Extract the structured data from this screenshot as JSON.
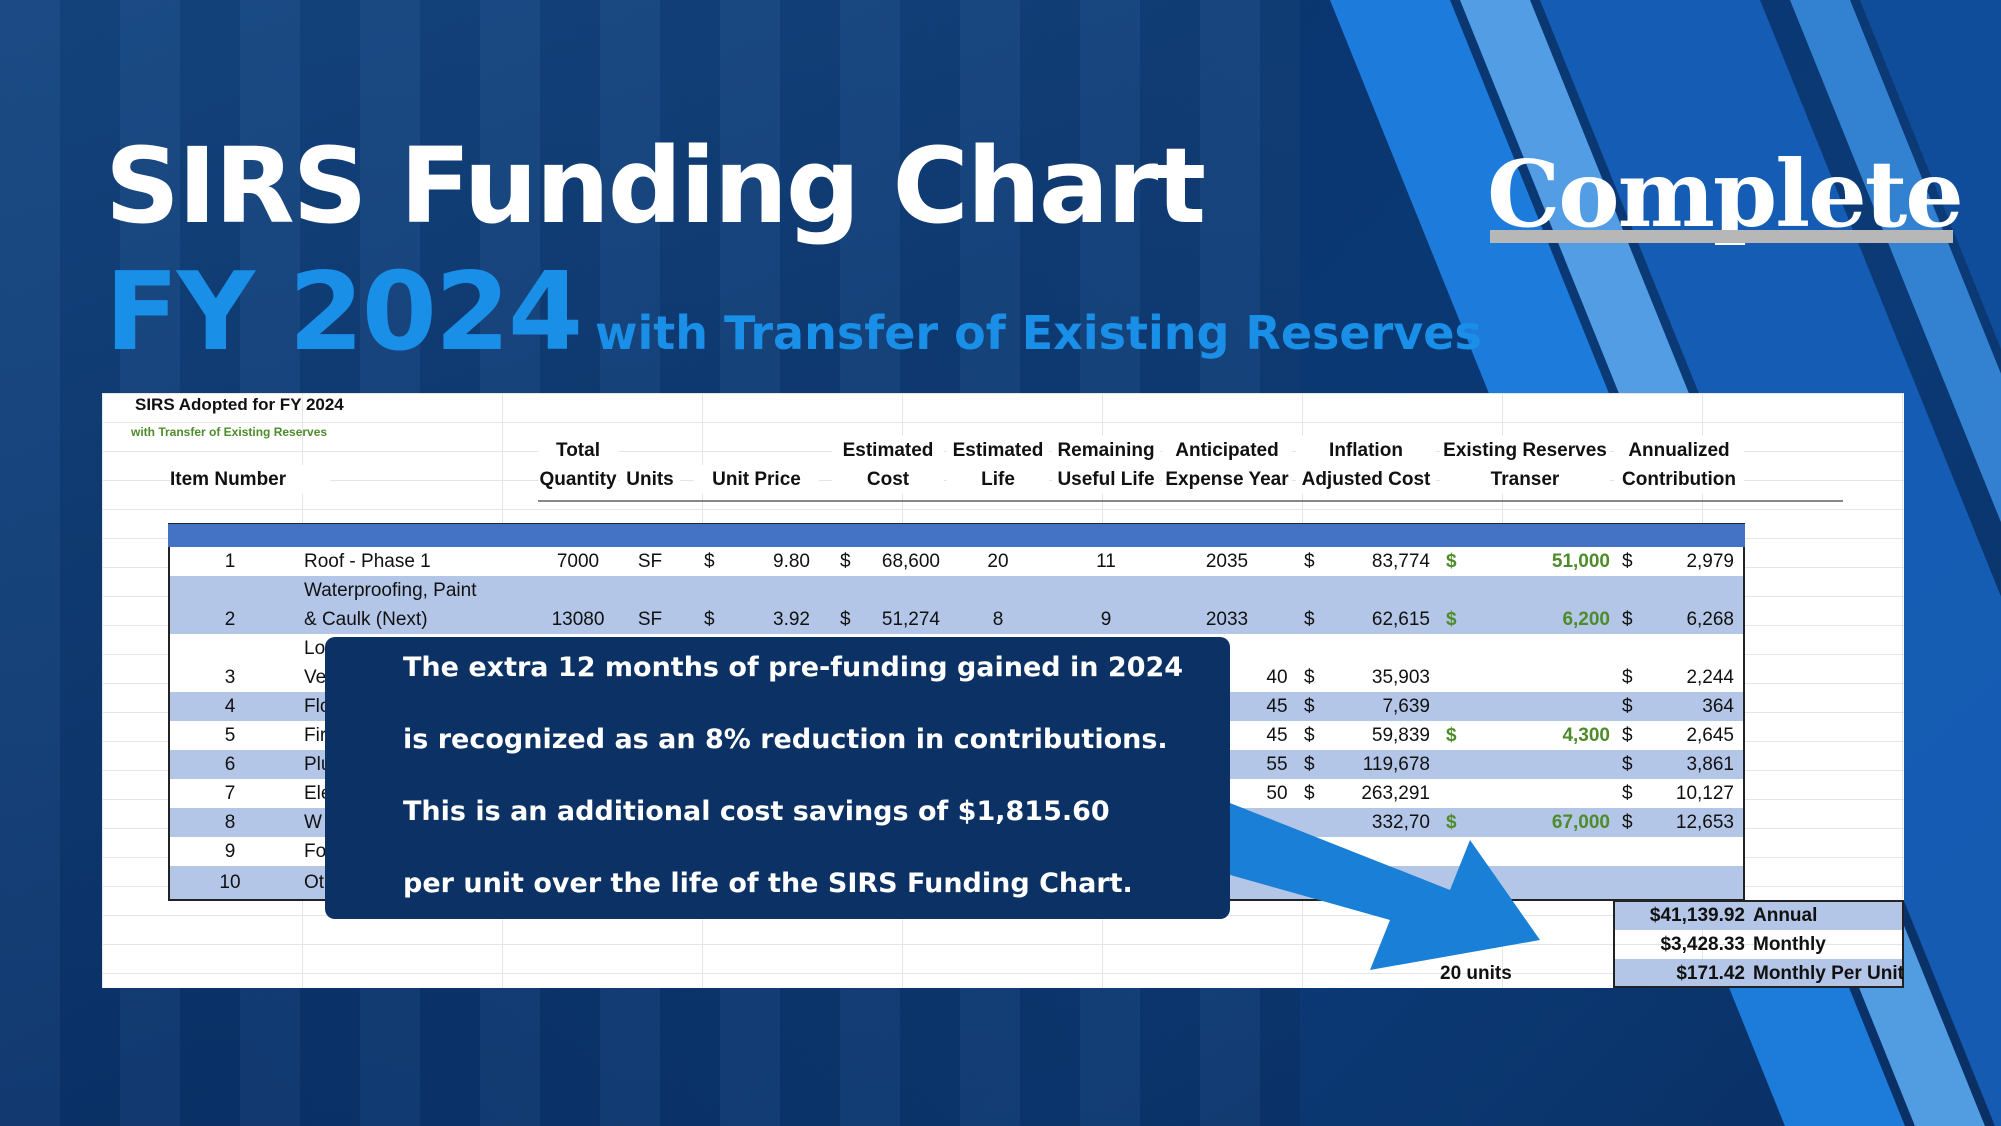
{
  "header": {
    "title": "SIRS Funding Chart",
    "fy": "FY 2024",
    "subtitle": "with Transfer of Existing Reserves",
    "badge": "Complete"
  },
  "sheet": {
    "title": "SIRS Adopted for FY 2024",
    "subtitle": "with Transfer of Existing Reserves",
    "columns": {
      "item_number": "Item Number",
      "total_quantity_1": "Total",
      "total_quantity_2": "Quantity",
      "units": "Units",
      "unit_price": "Unit Price",
      "estimated_cost_1": "Estimated",
      "estimated_cost_2": "Cost",
      "estimated_life_1": "Estimated",
      "estimated_life_2": "Life",
      "remaining_life_1": "Remaining",
      "remaining_life_2": "Useful Life",
      "expense_year_1": "Anticipated",
      "expense_year_2": "Expense Year",
      "inflation_cost_1": "Inflation",
      "inflation_cost_2": "Adjusted Cost",
      "existing_reserves_1": "Existing Reserves",
      "existing_reserves_2": "Transer",
      "annualized_1": "Annualized",
      "annualized_2": "Contribution"
    },
    "currency": "$",
    "rows": [
      {
        "num": "1",
        "name": "Roof - Phase 1",
        "qty": "7000",
        "units": "SF",
        "price": "9.80",
        "cost": "68,600",
        "life": "20",
        "remaining": "11",
        "year": "2035",
        "inflation": "83,774",
        "reserves": "51,000",
        "annual": "2,979"
      },
      {
        "num": "2",
        "name1": "Waterproofing, Paint",
        "name": "& Caulk (Next)",
        "qty": "13080",
        "units": "SF",
        "price": "3.92",
        "cost": "51,274",
        "life": "8",
        "remaining": "9",
        "year": "2033",
        "inflation": "62,615",
        "reserves": "6,200",
        "annual": "6,268"
      },
      {
        "num": "3",
        "name1": "Lo",
        "name": "Ve",
        "year": "40",
        "inflation": "35,903",
        "annual": "2,244"
      },
      {
        "num": "4",
        "name": "Flo",
        "year": "45",
        "inflation": "7,639",
        "annual": "364"
      },
      {
        "num": "5",
        "name": "Fir",
        "year": "45",
        "inflation": "59,839",
        "reserves": "4,300",
        "annual": "2,645"
      },
      {
        "num": "6",
        "name": "Plu",
        "year": "55",
        "inflation": "119,678",
        "annual": "3,861"
      },
      {
        "num": "7",
        "name": "Ele",
        "year": "50",
        "inflation": "263,291",
        "annual": "10,127"
      },
      {
        "num": "8",
        "name": "W",
        "inflation": "332,70",
        "reserves": "67,000",
        "annual": "12,653"
      },
      {
        "num": "9",
        "name": "Fo"
      },
      {
        "num": "10",
        "name": "Ot"
      }
    ],
    "units_count": "20 units",
    "totals": [
      {
        "amount": "$41,139.92",
        "label": "Annual"
      },
      {
        "amount": "$3,428.33",
        "label": "Monthly"
      },
      {
        "amount": "$171.42",
        "label": "Monthly Per Unit"
      }
    ]
  },
  "callout": {
    "line1": "The extra 12 months of pre-funding gained in 2024",
    "line2": "is recognized as an 8% reduction in contributions.",
    "line3": "This is an additional cost savings of $1,815.60",
    "line4": "per unit over the life of the SIRS Funding Chart."
  },
  "colors": {
    "background": "#0b3a76",
    "accent_blue": "#1a8fe8",
    "table_band": "#4472c4",
    "row_alt": "#b4c6e7",
    "reserves_green": "#4e8b2a",
    "callout_bg": "#0c3164",
    "arrow": "#1a7fd6"
  }
}
